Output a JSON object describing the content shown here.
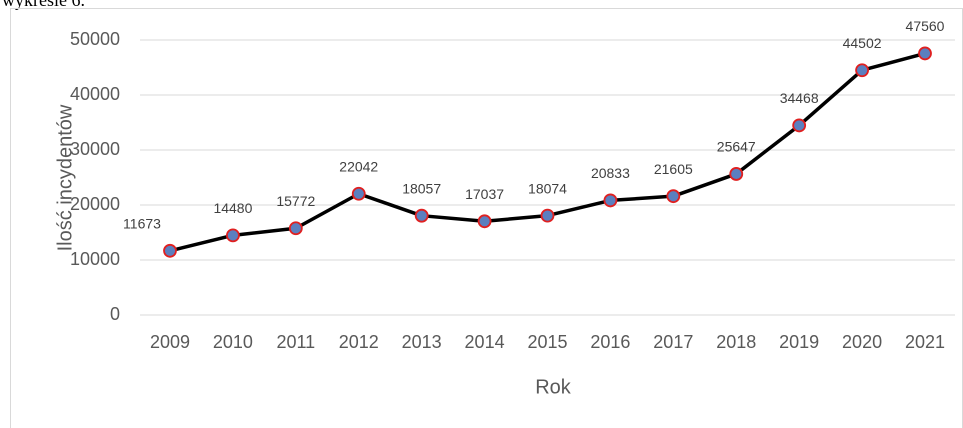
{
  "document_text": "wykresie 6.",
  "chart_data": {
    "type": "line",
    "x_label": "Rok",
    "y_label": "Ilość incydentów",
    "categories": [
      "2009",
      "2010",
      "2011",
      "2012",
      "2013",
      "2014",
      "2015",
      "2016",
      "2017",
      "2018",
      "2019",
      "2020",
      "2021"
    ],
    "series": [
      {
        "name": "Ilość incydentów",
        "color": "#000000",
        "marker_fill": "#5b7fbf",
        "marker_edge": "#e02020",
        "values": [
          11673,
          14480,
          15772,
          22042,
          18057,
          17037,
          18074,
          20833,
          21605,
          25647,
          34468,
          44502,
          47560
        ]
      }
    ],
    "ylim": [
      0,
      50000
    ],
    "yticks": [
      0,
      10000,
      20000,
      30000,
      40000,
      50000
    ],
    "grid": true
  }
}
